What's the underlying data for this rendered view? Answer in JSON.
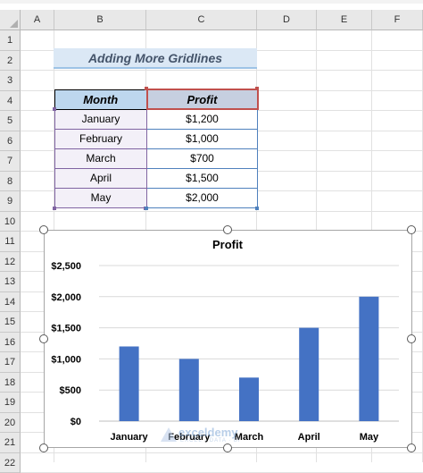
{
  "columns": [
    "A",
    "B",
    "C",
    "D",
    "E",
    "F"
  ],
  "rows": [
    "1",
    "2",
    "3",
    "4",
    "5",
    "6",
    "7",
    "8",
    "9",
    "10",
    "11",
    "12",
    "13",
    "14",
    "15",
    "16",
    "17",
    "18",
    "19",
    "20",
    "21",
    "22"
  ],
  "sheet_title": "Adding More Gridlines",
  "table": {
    "headers": [
      "Month",
      "Profit"
    ],
    "rows": [
      [
        "January",
        "$1,200"
      ],
      [
        "February",
        "$1,000"
      ],
      [
        "March",
        "$700"
      ],
      [
        "April",
        "$1,500"
      ],
      [
        "May",
        "$2,000"
      ]
    ]
  },
  "chart_data": {
    "type": "bar",
    "title": "Profit",
    "categories": [
      "January",
      "February",
      "March",
      "April",
      "May"
    ],
    "values": [
      1200,
      1000,
      700,
      1500,
      2000
    ],
    "ylim": [
      0,
      2500
    ],
    "yticks": [
      "$0",
      "$500",
      "$1,000",
      "$1,500",
      "$2,000",
      "$2,500"
    ],
    "grid": true,
    "bar_color": "#4472c4"
  },
  "watermark": {
    "name": "exceldemy",
    "sub": "EXCEL · DATA · BI"
  },
  "colors": {
    "accent": "#4472c4",
    "header_fill": "#bdd7ee",
    "title_fill": "#dbe8f5"
  }
}
